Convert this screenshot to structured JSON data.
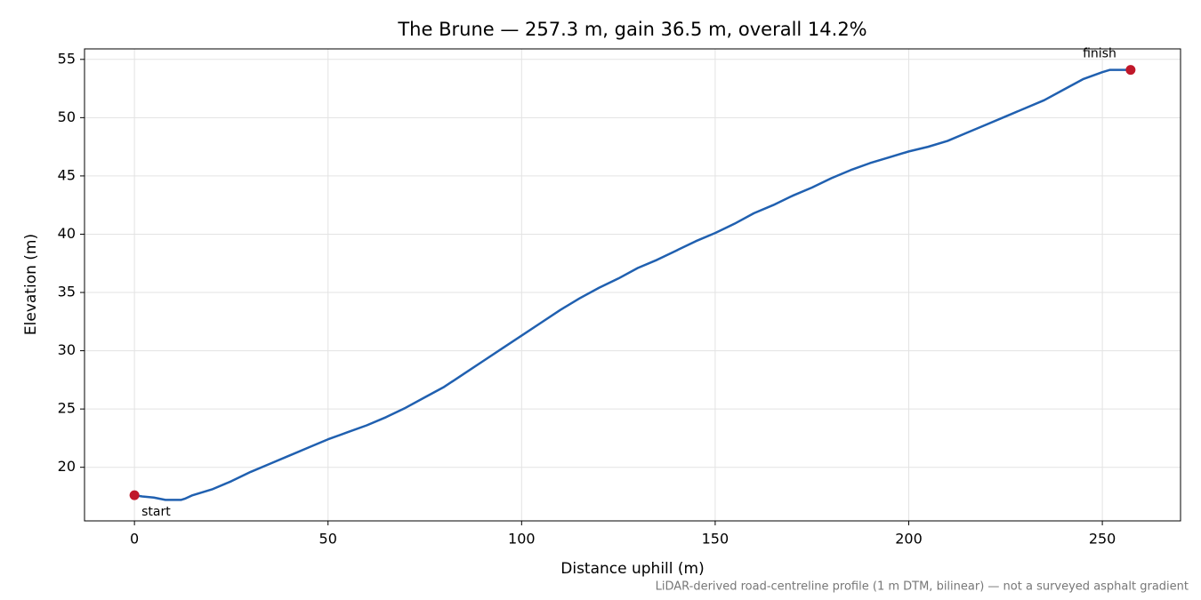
{
  "chart_data": {
    "type": "line",
    "title": "The Brune — 257.3 m, gain 36.5 m, overall 14.2%",
    "x_label": "Distance uphill (m)",
    "y_label": "Elevation (m)",
    "footnote": "LiDAR-derived road-centreline profile (1 m DTM, bilinear) — not a surveyed asphalt gradient",
    "x": [
      0,
      2,
      5,
      8,
      12,
      13,
      15,
      20,
      25,
      30,
      35,
      40,
      45,
      50,
      55,
      60,
      65,
      70,
      75,
      80,
      85,
      90,
      95,
      100,
      105,
      110,
      115,
      120,
      125,
      130,
      135,
      140,
      145,
      150,
      155,
      160,
      165,
      170,
      175,
      180,
      185,
      190,
      195,
      200,
      205,
      210,
      215,
      220,
      225,
      230,
      235,
      240,
      245,
      250,
      252,
      257.3
    ],
    "values": [
      17.6,
      17.5,
      17.4,
      17.2,
      17.2,
      17.3,
      17.6,
      18.1,
      18.8,
      19.6,
      20.3,
      21.0,
      21.7,
      22.4,
      23.0,
      23.6,
      24.3,
      25.1,
      26.0,
      26.9,
      28.0,
      29.1,
      30.2,
      31.3,
      32.4,
      33.5,
      34.5,
      35.4,
      36.2,
      37.1,
      37.8,
      38.6,
      39.4,
      40.1,
      40.9,
      41.8,
      42.5,
      43.3,
      44.0,
      44.8,
      45.5,
      46.1,
      46.6,
      47.1,
      47.5,
      48.0,
      48.7,
      49.4,
      50.1,
      50.8,
      51.5,
      52.4,
      53.3,
      53.9,
      54.1,
      54.1
    ],
    "color": "#2060b0",
    "markers": [
      {
        "label": "start",
        "x": 0,
        "y": 17.6
      },
      {
        "label": "finish",
        "x": 257.3,
        "y": 54.1
      }
    ],
    "marker_color": "#c0182a",
    "xlim": [
      -12.9,
      270.2
    ],
    "ylim": [
      15.4,
      55.9
    ],
    "xticks": [
      0,
      50,
      100,
      150,
      200,
      250
    ],
    "yticks": [
      20,
      25,
      30,
      35,
      40,
      45,
      50,
      55
    ],
    "grid": true
  }
}
